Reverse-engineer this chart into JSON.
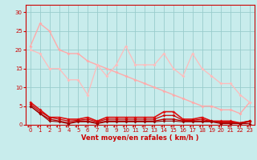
{
  "bg_color": "#c8ecec",
  "grid_color": "#99cccc",
  "text_color": "#cc0000",
  "xlabel": "Vent moyen/en rafales ( km/h )",
  "ylim": [
    0,
    32
  ],
  "yticks": [
    0,
    5,
    10,
    15,
    20,
    25,
    30
  ],
  "line1_color": "#ffaaaa",
  "line1_lw": 1.0,
  "line1_y": [
    21,
    27,
    25,
    20,
    19,
    19,
    17,
    16,
    15,
    14,
    13,
    12,
    11,
    10,
    9,
    8,
    7,
    6,
    5,
    5,
    4,
    4,
    3,
    6
  ],
  "line2_color": "#ffbbbb",
  "line2_lw": 0.9,
  "line2_y": [
    20,
    19,
    15,
    15,
    12,
    12,
    8,
    16,
    13,
    16,
    21,
    16,
    16,
    16,
    19,
    15,
    13,
    19,
    15,
    13,
    11,
    11,
    8,
    6
  ],
  "line3_color": "#dd1111",
  "line3_lw": 1.2,
  "line3_y": [
    6,
    4,
    2,
    2,
    1.5,
    1.5,
    2,
    1,
    2,
    2,
    2,
    2,
    2,
    2,
    3.5,
    3.5,
    1.5,
    1.5,
    2,
    1,
    1,
    1,
    0.5,
    1
  ],
  "line4_color": "#bb0000",
  "line4_lw": 1.0,
  "line4_y": [
    5,
    3,
    1.5,
    1,
    0.5,
    1,
    1,
    0.5,
    1,
    1,
    1,
    1,
    1,
    1,
    1.5,
    1.5,
    1,
    1,
    1,
    1,
    0.5,
    0.5,
    0.5,
    1
  ],
  "line5_color": "#cc0000",
  "line5_lw": 0.9,
  "line5_y": [
    5.5,
    3.5,
    2,
    1.5,
    1,
    1.2,
    1.5,
    0.8,
    1.5,
    1.5,
    1.5,
    1.5,
    1.5,
    1.5,
    2.5,
    2.5,
    1.2,
    1.2,
    1.5,
    0.8,
    0.8,
    0.8,
    0.3,
    0.8
  ],
  "line6_color": "#990000",
  "line6_lw": 0.8,
  "line6_y": [
    5,
    3,
    1,
    0.8,
    0.3,
    0.8,
    0.8,
    0.3,
    0.8,
    0.8,
    0.8,
    0.8,
    0.8,
    0.8,
    1,
    1,
    0.8,
    0.8,
    0.8,
    0.8,
    0.3,
    0.3,
    0.3,
    0.3
  ],
  "marker_size": 2.0
}
